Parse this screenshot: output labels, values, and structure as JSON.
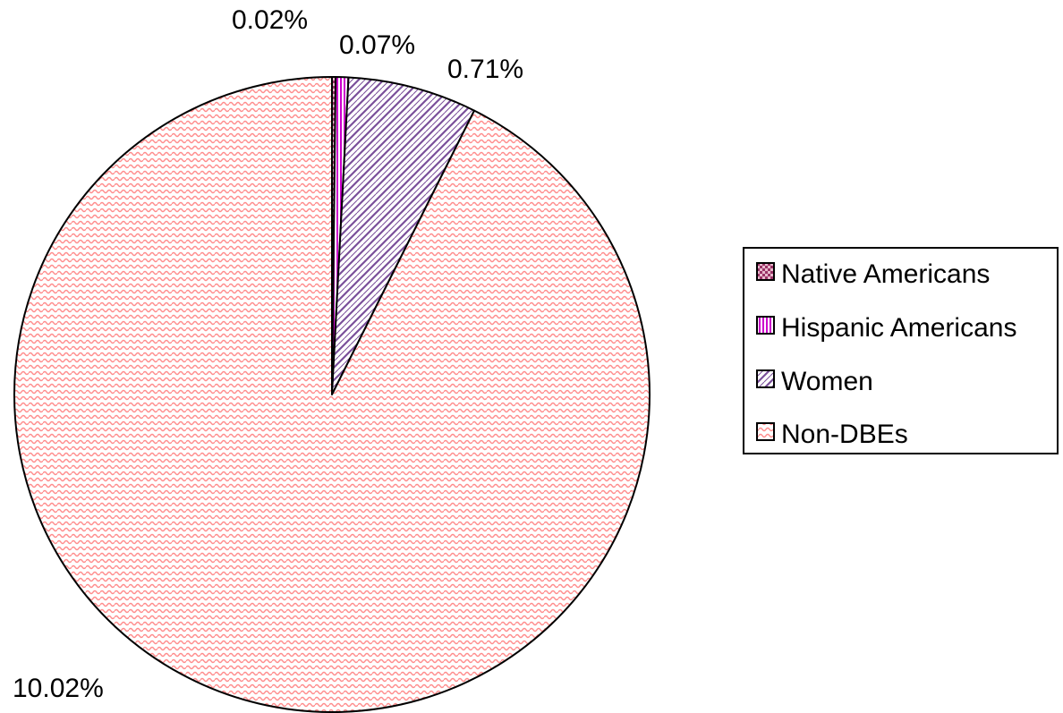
{
  "chart_data": {
    "type": "pie",
    "title": "",
    "categories": [
      "Native Americans",
      "Hispanic Americans",
      "Women",
      "Non-DBEs"
    ],
    "values": [
      0.02,
      0.07,
      0.71,
      10.02
    ],
    "value_labels": [
      "0.02%",
      "0.07%",
      "0.71%",
      "10.02%"
    ],
    "start_angle_deg": 0,
    "direction": "clockwise",
    "legend": {
      "position": "right",
      "entries": [
        "Native Americans",
        "Hispanic Americans",
        "Women",
        "Non-DBEs"
      ]
    },
    "colors": {
      "native": "#993366",
      "hispanic": "#cc00cc",
      "women": "#7a4f9a",
      "nondbe": "#ff8c8c",
      "outline": "#000000"
    }
  }
}
